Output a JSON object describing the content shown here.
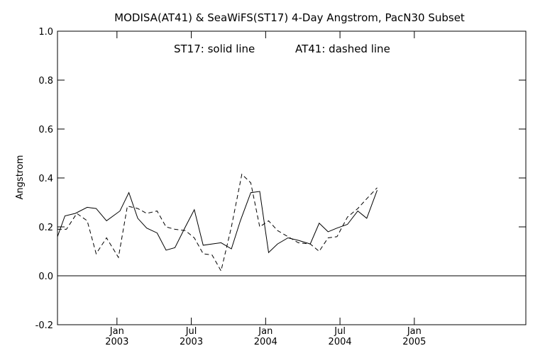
{
  "chart_data": {
    "type": "line",
    "title": "MODISA(AT41) & SeaWiFS(ST17) 4-Day Angstrom, PacN30 Subset",
    "annotation": {
      "st17": "ST17: solid line",
      "at41": "AT41: dashed line"
    },
    "xlabel": "",
    "ylabel": "Angstrom",
    "ylim": [
      -0.2,
      1.0
    ],
    "xlim": [
      2002.6,
      2005.75
    ],
    "y_ticks": [
      -0.2,
      0.0,
      0.2,
      0.4,
      0.6,
      0.8,
      1.0
    ],
    "y_tick_labels": [
      "-0.2",
      "0.0",
      "0.2",
      "0.4",
      "0.6",
      "0.8",
      "1.0"
    ],
    "x_ticks": [
      {
        "x": 2003.0,
        "month": "Jan",
        "year": "2003"
      },
      {
        "x": 2003.5,
        "month": "Jul",
        "year": "2003"
      },
      {
        "x": 2004.0,
        "month": "Jan",
        "year": "2004"
      },
      {
        "x": 2004.5,
        "month": "Jul",
        "year": "2004"
      },
      {
        "x": 2005.0,
        "month": "Jan",
        "year": "2005"
      }
    ],
    "zero_line": 0.0,
    "grid": false,
    "series": [
      {
        "name": "ST17",
        "style": "solid",
        "color": "#000000",
        "points": [
          [
            2002.6,
            0.16
          ],
          [
            2002.65,
            0.245
          ],
          [
            2002.72,
            0.255
          ],
          [
            2002.8,
            0.28
          ],
          [
            2002.86,
            0.275
          ],
          [
            2002.93,
            0.225
          ],
          [
            2003.02,
            0.265
          ],
          [
            2003.08,
            0.34
          ],
          [
            2003.14,
            0.235
          ],
          [
            2003.2,
            0.195
          ],
          [
            2003.27,
            0.175
          ],
          [
            2003.33,
            0.105
          ],
          [
            2003.39,
            0.115
          ],
          [
            2003.46,
            0.2
          ],
          [
            2003.52,
            0.27
          ],
          [
            2003.58,
            0.125
          ],
          [
            2003.64,
            0.13
          ],
          [
            2003.7,
            0.135
          ],
          [
            2003.77,
            0.11
          ],
          [
            2003.83,
            0.225
          ],
          [
            2003.9,
            0.34
          ],
          [
            2003.96,
            0.345
          ],
          [
            2004.02,
            0.095
          ],
          [
            2004.08,
            0.13
          ],
          [
            2004.15,
            0.155
          ],
          [
            2004.22,
            0.145
          ],
          [
            2004.3,
            0.13
          ],
          [
            2004.36,
            0.215
          ],
          [
            2004.42,
            0.18
          ],
          [
            2004.48,
            0.195
          ],
          [
            2004.55,
            0.21
          ],
          [
            2004.62,
            0.265
          ],
          [
            2004.68,
            0.235
          ],
          [
            2004.75,
            0.35
          ]
        ]
      },
      {
        "name": "AT41",
        "style": "dashed",
        "color": "#000000",
        "points": [
          [
            2002.6,
            0.19
          ],
          [
            2002.66,
            0.19
          ],
          [
            2002.73,
            0.255
          ],
          [
            2002.8,
            0.225
          ],
          [
            2002.86,
            0.09
          ],
          [
            2002.93,
            0.155
          ],
          [
            2003.01,
            0.075
          ],
          [
            2003.07,
            0.285
          ],
          [
            2003.14,
            0.275
          ],
          [
            2003.2,
            0.255
          ],
          [
            2003.27,
            0.265
          ],
          [
            2003.33,
            0.2
          ],
          [
            2003.39,
            0.19
          ],
          [
            2003.46,
            0.185
          ],
          [
            2003.52,
            0.155
          ],
          [
            2003.58,
            0.09
          ],
          [
            2003.64,
            0.085
          ],
          [
            2003.7,
            0.02
          ],
          [
            2003.77,
            0.2
          ],
          [
            2003.84,
            0.415
          ],
          [
            2003.9,
            0.38
          ],
          [
            2003.96,
            0.2
          ],
          [
            2004.02,
            0.225
          ],
          [
            2004.08,
            0.185
          ],
          [
            2004.15,
            0.16
          ],
          [
            2004.22,
            0.135
          ],
          [
            2004.3,
            0.13
          ],
          [
            2004.36,
            0.1
          ],
          [
            2004.42,
            0.155
          ],
          [
            2004.48,
            0.16
          ],
          [
            2004.55,
            0.24
          ],
          [
            2004.62,
            0.275
          ],
          [
            2004.68,
            0.315
          ],
          [
            2004.75,
            0.36
          ]
        ]
      }
    ]
  }
}
